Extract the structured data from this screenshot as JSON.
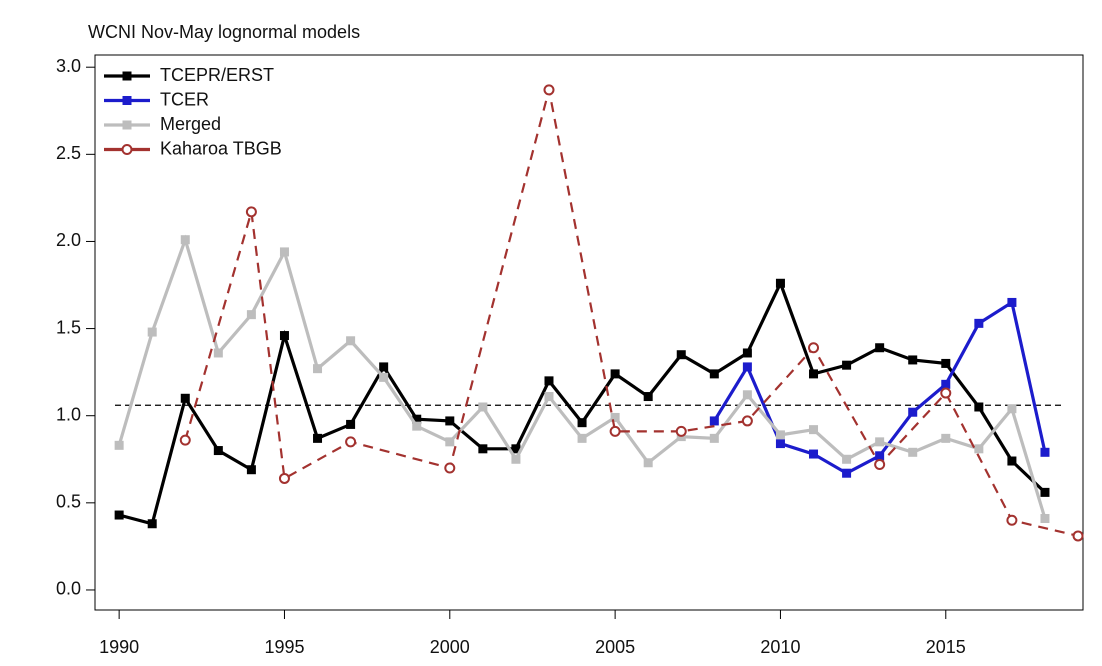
{
  "chart_data": {
    "type": "line",
    "title": "WCNI Nov-May lognormal models",
    "xlim": [
      1989.27,
      2019.15
    ],
    "ylim": [
      -0.115,
      3.07
    ],
    "xticks": [
      1990,
      1995,
      2000,
      2005,
      2010,
      2015
    ],
    "yticks": [
      {
        "value": 0,
        "label": "0.0"
      },
      0.5,
      {
        "value": 1,
        "label": "1.0"
      },
      1.5,
      {
        "value": 2,
        "label": "2.0"
      },
      2.5,
      {
        "value": 3,
        "label": "3.0"
      }
    ],
    "hline": 1.06,
    "legend": "top-left",
    "series": [
      {
        "name": "TCEPR/ERST",
        "color": "#000000",
        "marker": "square",
        "dashed": false,
        "x": [
          1990,
          1991,
          1992,
          1993,
          1994,
          1995,
          1996,
          1997,
          1998,
          1999,
          2000,
          2001,
          2002,
          2003,
          2004,
          2005,
          2006,
          2007,
          2008,
          2009,
          2010,
          2011,
          2012,
          2013,
          2014,
          2015,
          2016,
          2017,
          2018
        ],
        "values": [
          0.43,
          0.38,
          1.1,
          0.8,
          0.69,
          1.46,
          0.87,
          0.95,
          1.28,
          0.98,
          0.97,
          0.81,
          0.81,
          1.2,
          0.96,
          1.24,
          1.11,
          1.35,
          1.24,
          1.36,
          1.76,
          1.24,
          1.29,
          1.39,
          1.32,
          1.3,
          1.05,
          0.74,
          0.56
        ]
      },
      {
        "name": "TCER",
        "color": "#1c1ccc",
        "marker": "square",
        "dashed": false,
        "x": [
          2008,
          2009,
          2010,
          2011,
          2012,
          2013,
          2014,
          2015,
          2016,
          2017,
          2018
        ],
        "values": [
          0.97,
          1.28,
          0.84,
          0.78,
          0.67,
          0.77,
          1.02,
          1.18,
          1.53,
          1.65,
          0.79
        ]
      },
      {
        "name": "Merged",
        "color": "#bdbdbd",
        "marker": "square",
        "dashed": false,
        "x": [
          1990,
          1991,
          1992,
          1993,
          1994,
          1995,
          1996,
          1997,
          1998,
          1999,
          2000,
          2001,
          2002,
          2003,
          2004,
          2005,
          2006,
          2007,
          2008,
          2009,
          2010,
          2011,
          2012,
          2013,
          2014,
          2015,
          2016,
          2017,
          2018
        ],
        "values": [
          0.83,
          1.48,
          2.01,
          1.36,
          1.58,
          1.94,
          1.27,
          1.43,
          1.22,
          0.94,
          0.85,
          1.05,
          0.75,
          1.11,
          0.87,
          0.99,
          0.73,
          0.88,
          0.87,
          1.12,
          0.89,
          0.92,
          0.75,
          0.85,
          0.79,
          0.87,
          0.81,
          1.04,
          0.41
        ]
      },
      {
        "name": "Kaharoa TBGB",
        "color": "#a3322f",
        "marker": "circle",
        "dashed": true,
        "x": [
          1992,
          1994,
          1995,
          1997,
          2000,
          2003,
          2005,
          2007,
          2009,
          2011,
          2013,
          2015,
          2017,
          2019
        ],
        "values": [
          0.86,
          2.17,
          0.64,
          0.85,
          0.7,
          2.87,
          0.91,
          0.91,
          0.97,
          1.39,
          0.72,
          1.13,
          0.4,
          0.31
        ]
      }
    ]
  }
}
